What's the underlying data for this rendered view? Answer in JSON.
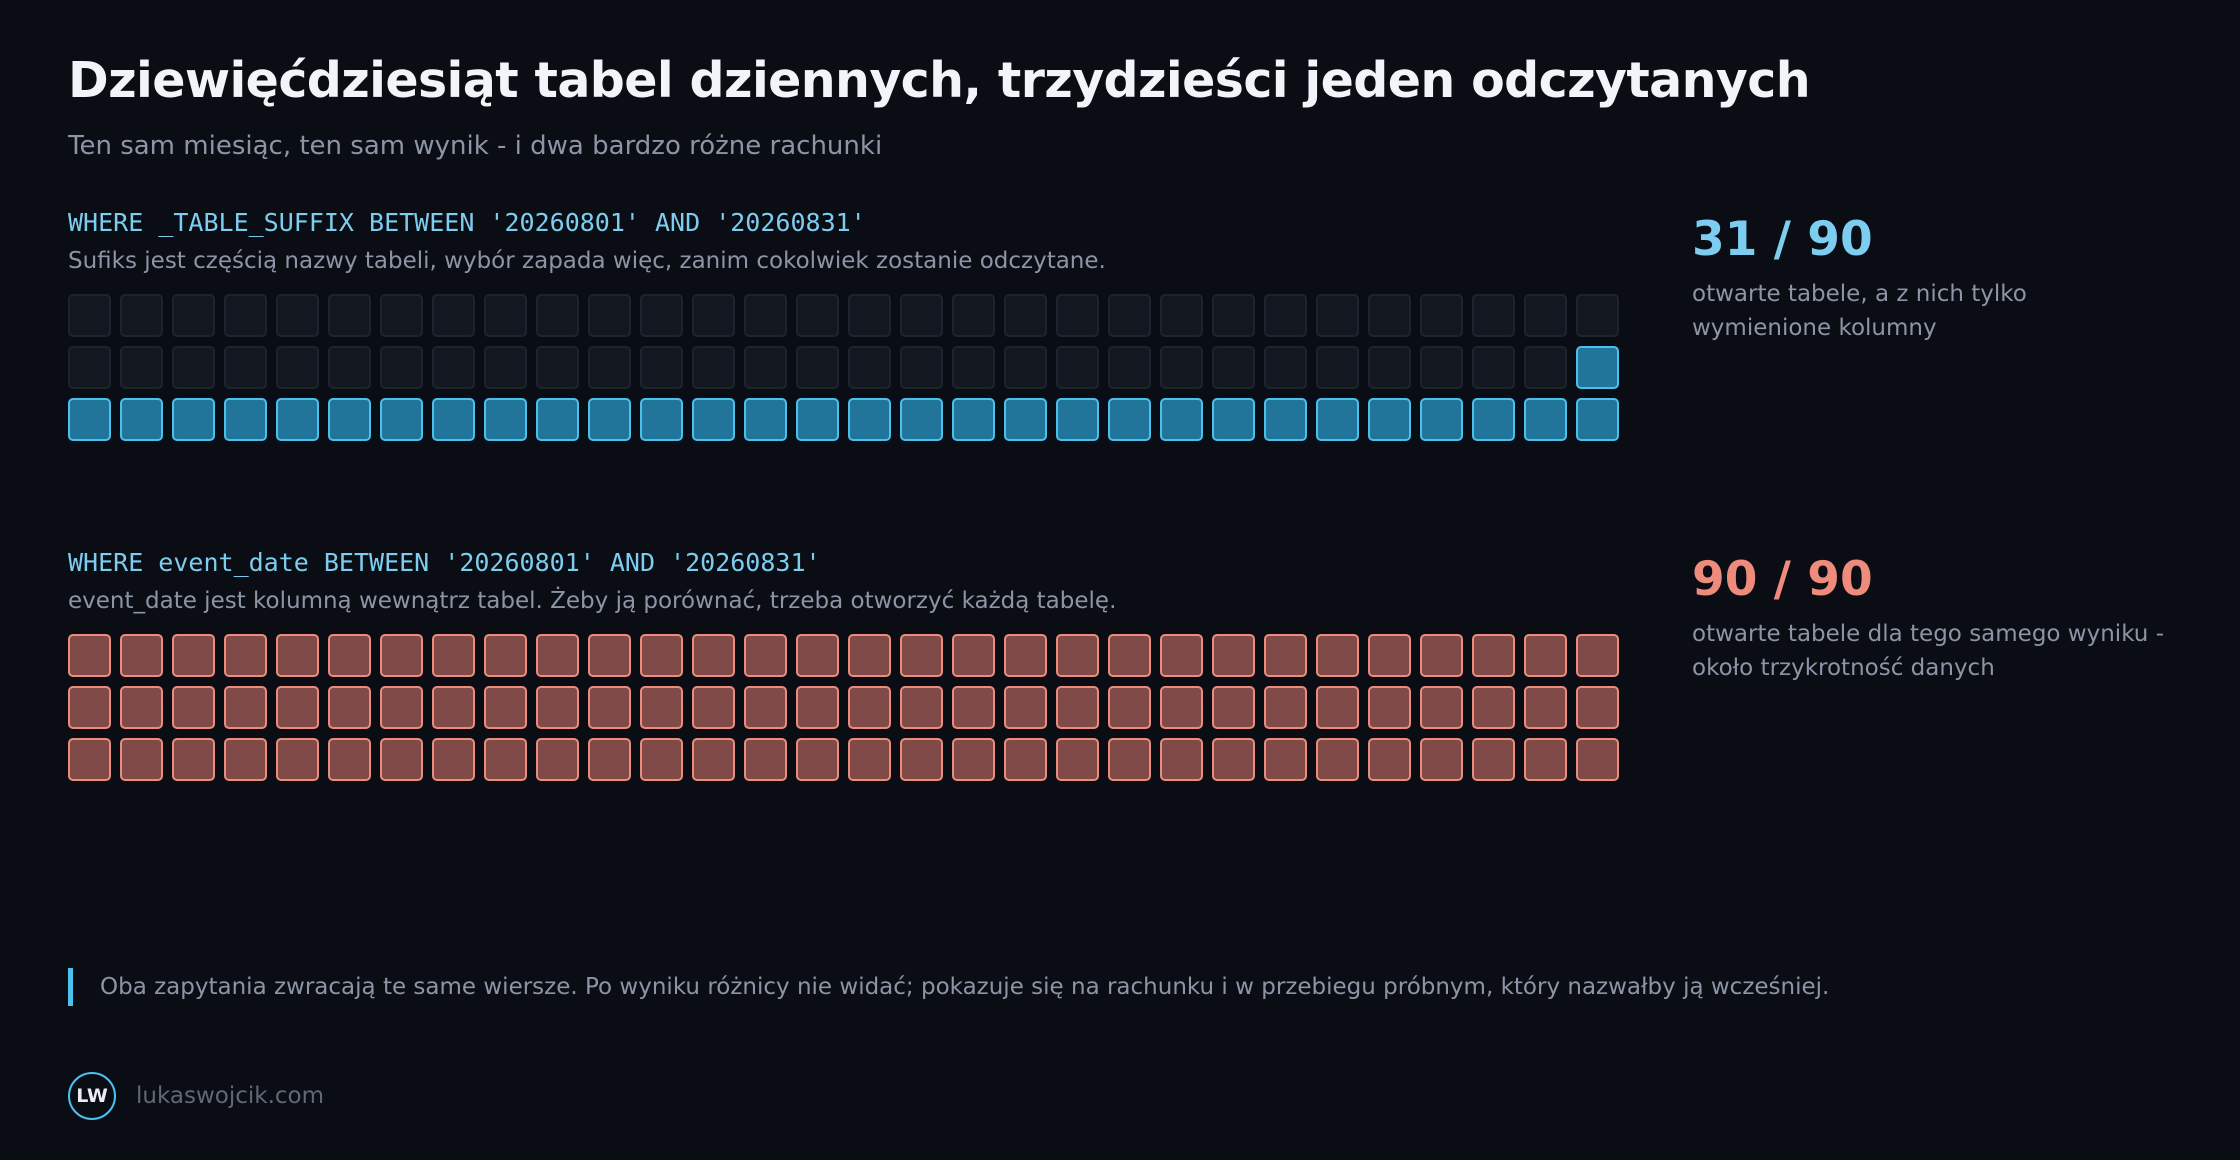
{
  "header": {
    "title": "Dziewięćdziesiąt tabel dziennych, trzydzieści jeden odczytanych",
    "subtitle": "Ten sam miesiąc, ten sam wynik - i dwa bardzo różne rachunki"
  },
  "sections": [
    {
      "query": "WHERE _TABLE_SUFFIX BETWEEN '20260801' AND '20260831'",
      "caption": "Sufiks jest częścią nazwy tabeli, wybór zapada więc, zanim cokolwiek zostanie odczytane.",
      "total_tables": 90,
      "read_tables": 31,
      "read_color": "#21759b",
      "stat_value": "31 / 90",
      "stat_desc": "otwarte tabele, a z nich tylko wymienione kolumny"
    },
    {
      "query": "WHERE event_date BETWEEN '20260801' AND '20260831'",
      "caption": "event_date jest kolumną wewnątrz tabel. Żeby ją porównać, trzeba otworzyć każdą tabelę.",
      "total_tables": 90,
      "read_tables": 90,
      "read_color": "#7f4a47",
      "stat_value": "90 / 90",
      "stat_desc": "otwarte tabele dla tego samego wyniku - około trzykrotność danych"
    }
  ],
  "note": "Oba zapytania zwracają te same wiersze. Po wyniku różnicy nie widać; pokazuje się na rachunku i w przebiegu próbnym, który nazwałby ją wcześniej.",
  "footer": {
    "logo_text": "LW",
    "site": "lukaswojcik.com"
  },
  "colors": {
    "background": "#0a0d14",
    "accent_blue": "#4cc0ec",
    "accent_red": "#ef8b7c"
  }
}
